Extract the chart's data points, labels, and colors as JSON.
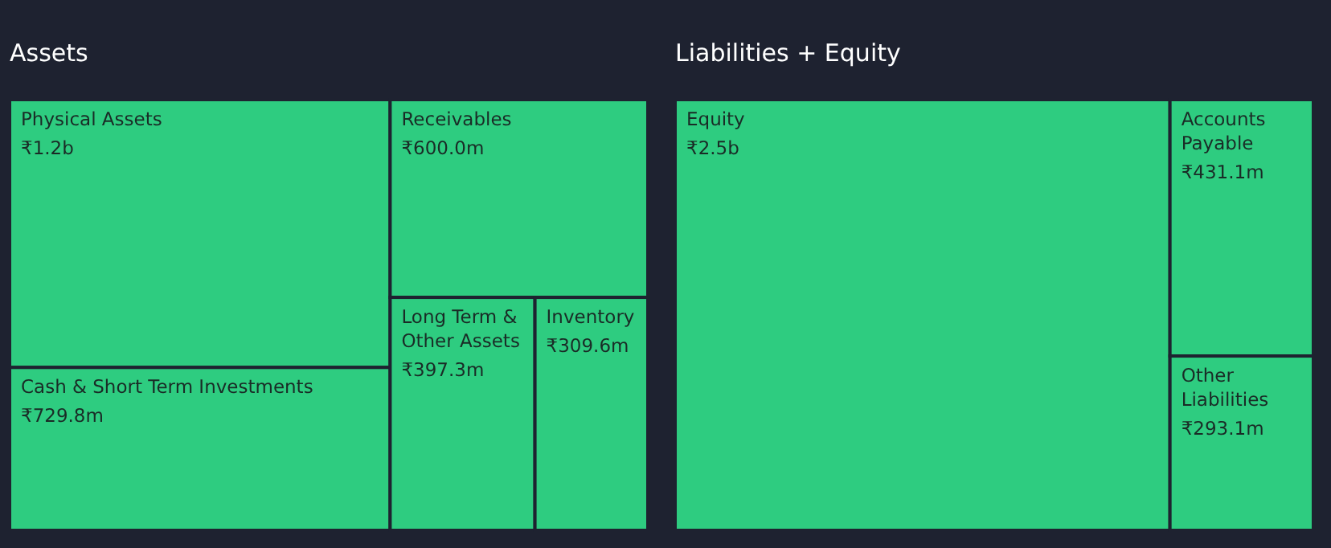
{
  "chart_data": [
    {
      "type": "other",
      "title": "Assets",
      "color": "#2ecc80",
      "categories": [
        "Physical Assets",
        "Cash & Short Term Investments",
        "Receivables",
        "Long Term & Other Assets",
        "Inventory"
      ],
      "values": [
        1200000000,
        729800000,
        600000000,
        397300000,
        309600000
      ],
      "value_labels": [
        "₹1.2b",
        "₹729.8m",
        "₹600.0m",
        "₹397.3m",
        "₹309.6m"
      ]
    },
    {
      "type": "other",
      "title": "Liabilities + Equity",
      "color": "#2ecc80",
      "categories": [
        "Equity",
        "Accounts Payable",
        "Other Liabilities"
      ],
      "values": [
        2500000000,
        431100000,
        293100000
      ],
      "value_labels": [
        "₹2.5b",
        "₹431.1m",
        "₹293.1m"
      ]
    }
  ]
}
